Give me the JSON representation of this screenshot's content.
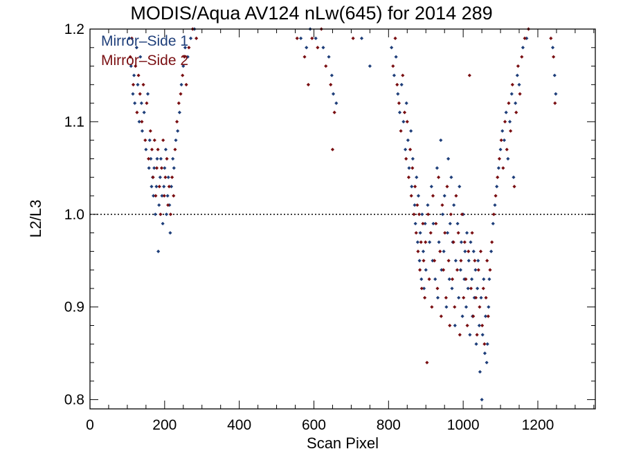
{
  "chart_data": {
    "type": "scatter",
    "title": "MODIS/Aqua AV124 nLw(645) for 2014 289",
    "xlabel": "Scan Pixel",
    "ylabel": "L2/L3",
    "xlim": [
      0,
      1354
    ],
    "ylim": [
      0.79,
      1.2
    ],
    "x_ticks": [
      0,
      200,
      400,
      600,
      800,
      1000,
      1200
    ],
    "x_tick_labels": [
      "0",
      "200",
      "400",
      "600",
      "800",
      "1000",
      "1200"
    ],
    "y_ticks": [
      0.8,
      0.9,
      1.0,
      1.1,
      1.2
    ],
    "y_tick_labels": [
      "0.8",
      "0.9",
      "1.0",
      "1.1",
      "1.2"
    ],
    "reference_line": {
      "y": 1.0,
      "style": "dotted"
    },
    "legend_position": "top-left",
    "series": [
      {
        "name": "Mirror–Side 1",
        "color": "#1f3f7a",
        "points": [
          [
            105,
            1.19
          ],
          [
            110,
            1.16
          ],
          [
            115,
            1.13
          ],
          [
            118,
            1.15
          ],
          [
            120,
            1.12
          ],
          [
            125,
            1.18
          ],
          [
            128,
            1.14
          ],
          [
            132,
            1.1
          ],
          [
            135,
            1.17
          ],
          [
            138,
            1.12
          ],
          [
            140,
            1.09
          ],
          [
            145,
            1.11
          ],
          [
            150,
            1.07
          ],
          [
            155,
            1.13
          ],
          [
            158,
            1.05
          ],
          [
            160,
            1.08
          ],
          [
            163,
            1.06
          ],
          [
            165,
            1.03
          ],
          [
            168,
            1.04
          ],
          [
            170,
            1.02
          ],
          [
            172,
            1.05
          ],
          [
            175,
            1.0
          ],
          [
            178,
            1.03
          ],
          [
            180,
            1.06
          ],
          [
            183,
            0.96
          ],
          [
            185,
            1.01
          ],
          [
            188,
            1.04
          ],
          [
            190,
            1.06
          ],
          [
            193,
            1.02
          ],
          [
            195,
            0.99
          ],
          [
            198,
            1.03
          ],
          [
            200,
            1.05
          ],
          [
            203,
            1.07
          ],
          [
            205,
            1.0
          ],
          [
            208,
            1.02
          ],
          [
            210,
            1.04
          ],
          [
            213,
            1.01
          ],
          [
            215,
            0.98
          ],
          [
            218,
            1.03
          ],
          [
            222,
            1.06
          ],
          [
            225,
            1.05
          ],
          [
            230,
            1.08
          ],
          [
            235,
            1.09
          ],
          [
            240,
            1.11
          ],
          [
            245,
            1.14
          ],
          [
            250,
            1.16
          ],
          [
            255,
            1.18
          ],
          [
            262,
            1.17
          ],
          [
            270,
            1.19
          ],
          [
            280,
            1.2
          ],
          [
            565,
            1.19
          ],
          [
            580,
            1.18
          ],
          [
            590,
            1.2
          ],
          [
            605,
            1.19
          ],
          [
            625,
            1.18
          ],
          [
            640,
            1.17
          ],
          [
            648,
            1.15
          ],
          [
            652,
            1.13
          ],
          [
            660,
            1.12
          ],
          [
            728,
            1.19
          ],
          [
            750,
            1.16
          ],
          [
            808,
            1.18
          ],
          [
            815,
            1.15
          ],
          [
            820,
            1.17
          ],
          [
            825,
            1.13
          ],
          [
            830,
            1.11
          ],
          [
            835,
            1.14
          ],
          [
            840,
            1.1
          ],
          [
            845,
            1.07
          ],
          [
            848,
            1.12
          ],
          [
            852,
            1.08
          ],
          [
            855,
            1.05
          ],
          [
            860,
            1.09
          ],
          [
            862,
            1.03
          ],
          [
            865,
            1.06
          ],
          [
            870,
            1.01
          ],
          [
            872,
            0.99
          ],
          [
            875,
            1.04
          ],
          [
            878,
            0.97
          ],
          [
            880,
            1.02
          ],
          [
            883,
            0.95
          ],
          [
            885,
            0.98
          ],
          [
            888,
            0.93
          ],
          [
            890,
            1.0
          ],
          [
            893,
            0.96
          ],
          [
            895,
            0.92
          ],
          [
            898,
            0.99
          ],
          [
            900,
            0.94
          ],
          [
            905,
            1.01
          ],
          [
            910,
            0.97
          ],
          [
            915,
            1.03
          ],
          [
            918,
            0.95
          ],
          [
            920,
            0.99
          ],
          [
            925,
            0.93
          ],
          [
            930,
            1.05
          ],
          [
            932,
            0.91
          ],
          [
            935,
            0.97
          ],
          [
            940,
            1.08
          ],
          [
            942,
            0.94
          ],
          [
            945,
            1.0
          ],
          [
            948,
            0.96
          ],
          [
            950,
            1.02
          ],
          [
            955,
            0.9
          ],
          [
            958,
            0.98
          ],
          [
            960,
            1.06
          ],
          [
            963,
            0.93
          ],
          [
            965,
            0.99
          ],
          [
            968,
            1.04
          ],
          [
            970,
            0.92
          ],
          [
            972,
            0.97
          ],
          [
            975,
            1.01
          ],
          [
            978,
            0.88
          ],
          [
            980,
            0.95
          ],
          [
            985,
            0.99
          ],
          [
            988,
            0.91
          ],
          [
            990,
            1.03
          ],
          [
            993,
            0.94
          ],
          [
            995,
            0.97
          ],
          [
            998,
            0.89
          ],
          [
            1000,
            1.0
          ],
          [
            1003,
            0.93
          ],
          [
            1005,
            0.96
          ],
          [
            1008,
            0.9
          ],
          [
            1010,
            0.98
          ],
          [
            1013,
            0.92
          ],
          [
            1015,
            0.95
          ],
          [
            1018,
            0.87
          ],
          [
            1020,
            0.97
          ],
          [
            1023,
            0.93
          ],
          [
            1025,
            0.89
          ],
          [
            1028,
            0.96
          ],
          [
            1030,
            0.91
          ],
          [
            1033,
            0.94
          ],
          [
            1035,
            0.86
          ],
          [
            1038,
            0.92
          ],
          [
            1040,
            0.95
          ],
          [
            1043,
            0.88
          ],
          [
            1045,
            0.83
          ],
          [
            1048,
            0.91
          ],
          [
            1050,
            0.8
          ],
          [
            1052,
            0.87
          ],
          [
            1055,
            0.93
          ],
          [
            1058,
            0.85
          ],
          [
            1060,
            0.89
          ],
          [
            1063,
            0.84
          ],
          [
            1065,
            0.86
          ],
          [
            1068,
            0.9
          ],
          [
            1070,
            0.93
          ],
          [
            1075,
            0.96
          ],
          [
            1080,
            0.99
          ],
          [
            1085,
            1.01
          ],
          [
            1090,
            1.03
          ],
          [
            1095,
            1.05
          ],
          [
            1100,
            1.07
          ],
          [
            1105,
            1.09
          ],
          [
            1110,
            1.08
          ],
          [
            1115,
            1.11
          ],
          [
            1120,
            1.06
          ],
          [
            1125,
            1.1
          ],
          [
            1130,
            1.13
          ],
          [
            1135,
            1.04
          ],
          [
            1140,
            1.12
          ],
          [
            1145,
            1.15
          ],
          [
            1150,
            1.14
          ],
          [
            1160,
            1.18
          ],
          [
            1170,
            1.19
          ],
          [
            1240,
            1.18
          ],
          [
            1245,
            1.15
          ],
          [
            1248,
            1.13
          ]
        ]
      },
      {
        "name": "Mirror–Side 2",
        "color": "#7a0f12",
        "points": [
          [
            108,
            1.17
          ],
          [
            112,
            1.19
          ],
          [
            116,
            1.14
          ],
          [
            122,
            1.16
          ],
          [
            126,
            1.11
          ],
          [
            130,
            1.15
          ],
          [
            134,
            1.13
          ],
          [
            139,
            1.1
          ],
          [
            143,
            1.14
          ],
          [
            148,
            1.08
          ],
          [
            152,
            1.12
          ],
          [
            157,
            1.06
          ],
          [
            162,
            1.09
          ],
          [
            166,
            1.07
          ],
          [
            169,
            1.04
          ],
          [
            173,
            1.08
          ],
          [
            176,
            1.02
          ],
          [
            179,
            1.05
          ],
          [
            182,
            1.07
          ],
          [
            186,
            1.03
          ],
          [
            189,
            1.0
          ],
          [
            192,
            1.05
          ],
          [
            196,
            1.08
          ],
          [
            199,
            1.02
          ],
          [
            202,
            1.04
          ],
          [
            206,
            1.06
          ],
          [
            209,
            1.01
          ],
          [
            212,
            1.03
          ],
          [
            216,
            1.0
          ],
          [
            220,
            1.04
          ],
          [
            224,
            1.02
          ],
          [
            228,
            1.07
          ],
          [
            233,
            1.1
          ],
          [
            238,
            1.12
          ],
          [
            243,
            1.13
          ],
          [
            248,
            1.15
          ],
          [
            253,
            1.17
          ],
          [
            258,
            1.14
          ],
          [
            265,
            1.18
          ],
          [
            275,
            1.2
          ],
          [
            285,
            1.19
          ],
          [
            555,
            1.19
          ],
          [
            575,
            1.17
          ],
          [
            585,
            1.14
          ],
          [
            595,
            1.19
          ],
          [
            610,
            1.18
          ],
          [
            620,
            1.2
          ],
          [
            632,
            1.16
          ],
          [
            645,
            1.14
          ],
          [
            650,
            1.07
          ],
          [
            655,
            1.11
          ],
          [
            705,
            1.19
          ],
          [
            812,
            1.16
          ],
          [
            818,
            1.19
          ],
          [
            823,
            1.14
          ],
          [
            828,
            1.12
          ],
          [
            833,
            1.09
          ],
          [
            838,
            1.15
          ],
          [
            843,
            1.11
          ],
          [
            847,
            1.06
          ],
          [
            850,
            1.1
          ],
          [
            854,
            1.04
          ],
          [
            858,
            1.07
          ],
          [
            861,
            1.02
          ],
          [
            864,
            1.05
          ],
          [
            868,
            1.0
          ],
          [
            871,
            1.03
          ],
          [
            874,
            0.98
          ],
          [
            877,
            1.01
          ],
          [
            879,
            0.96
          ],
          [
            882,
            1.0
          ],
          [
            884,
            0.94
          ],
          [
            887,
            0.97
          ],
          [
            889,
            0.92
          ],
          [
            892,
            0.99
          ],
          [
            894,
            0.95
          ],
          [
            897,
            0.91
          ],
          [
            899,
            0.97
          ],
          [
            903,
            0.84
          ],
          [
            906,
            1.0
          ],
          [
            909,
            0.93
          ],
          [
            913,
            0.98
          ],
          [
            916,
            0.9
          ],
          [
            919,
            1.02
          ],
          [
            923,
            0.95
          ],
          [
            927,
            0.99
          ],
          [
            931,
            0.92
          ],
          [
            934,
            1.04
          ],
          [
            938,
            0.96
          ],
          [
            941,
            0.89
          ],
          [
            944,
            1.01
          ],
          [
            947,
            0.94
          ],
          [
            951,
            0.98
          ],
          [
            954,
            0.91
          ],
          [
            957,
            1.03
          ],
          [
            961,
            0.95
          ],
          [
            964,
            0.88
          ],
          [
            967,
            1.0
          ],
          [
            971,
            0.93
          ],
          [
            974,
            0.97
          ],
          [
            977,
            0.9
          ],
          [
            981,
            1.02
          ],
          [
            984,
            0.94
          ],
          [
            987,
            0.98
          ],
          [
            991,
            0.87
          ],
          [
            994,
            0.95
          ],
          [
            997,
            1.0
          ],
          [
            1001,
            0.91
          ],
          [
            1004,
            0.97
          ],
          [
            1007,
            0.93
          ],
          [
            1011,
            0.88
          ],
          [
            1014,
            0.96
          ],
          [
            1017,
            1.15
          ],
          [
            1021,
            0.92
          ],
          [
            1024,
            0.98
          ],
          [
            1027,
            0.89
          ],
          [
            1031,
            0.95
          ],
          [
            1034,
            0.91
          ],
          [
            1037,
            0.87
          ],
          [
            1041,
            0.94
          ],
          [
            1044,
            0.9
          ],
          [
            1047,
            0.96
          ],
          [
            1051,
            0.88
          ],
          [
            1054,
            0.92
          ],
          [
            1057,
            0.86
          ],
          [
            1061,
            0.91
          ],
          [
            1064,
            0.95
          ],
          [
            1067,
            0.89
          ],
          [
            1072,
            0.94
          ],
          [
            1077,
            0.97
          ],
          [
            1082,
            1.0
          ],
          [
            1087,
            1.02
          ],
          [
            1092,
            1.04
          ],
          [
            1097,
            1.06
          ],
          [
            1102,
            1.08
          ],
          [
            1107,
            1.05
          ],
          [
            1112,
            1.1
          ],
          [
            1117,
            1.07
          ],
          [
            1122,
            1.12
          ],
          [
            1127,
            1.09
          ],
          [
            1132,
            1.14
          ],
          [
            1137,
            1.03
          ],
          [
            1142,
            1.11
          ],
          [
            1147,
            1.16
          ],
          [
            1152,
            1.13
          ],
          [
            1157,
            1.17
          ],
          [
            1165,
            1.19
          ],
          [
            1175,
            1.2
          ],
          [
            1235,
            1.19
          ],
          [
            1242,
            1.17
          ],
          [
            1246,
            1.12
          ]
        ]
      }
    ]
  }
}
